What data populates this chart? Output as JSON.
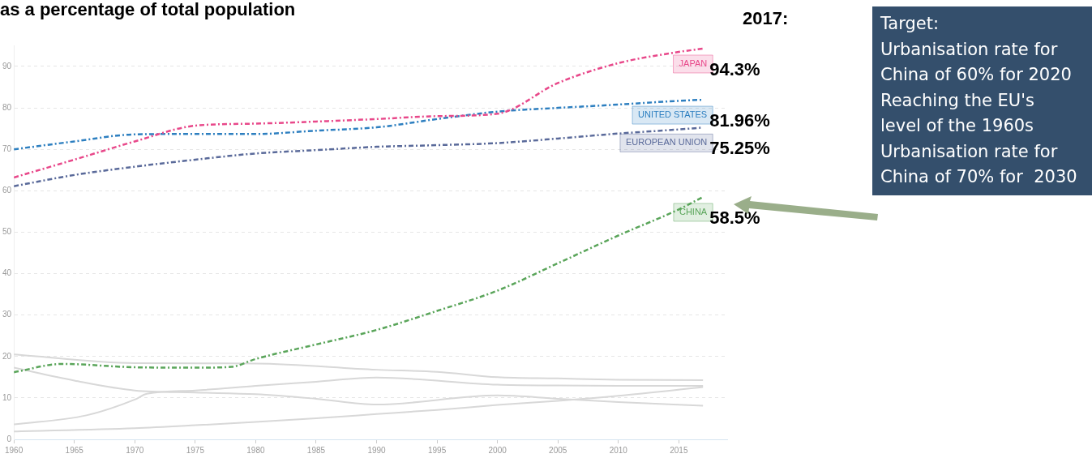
{
  "chart_data": {
    "type": "line",
    "title": "as a percentage of total population",
    "x": [
      1960,
      1965,
      1970,
      1975,
      1980,
      1985,
      1990,
      1995,
      2000,
      2005,
      2010,
      2015,
      2017
    ],
    "series": [
      {
        "name": "JAPAN",
        "color": "#e8488a",
        "line_style": "dashed",
        "values": [
          63.2,
          67.5,
          71.9,
          75.7,
          76.2,
          76.7,
          77.3,
          78.0,
          78.6,
          86.0,
          90.8,
          93.5,
          94.3
        ],
        "value_labels": [
          null,
          null,
          null,
          null,
          null,
          null,
          null,
          null,
          null,
          null,
          null,
          null,
          "94.3%"
        ]
      },
      {
        "name": "UNITED STATES",
        "color": "#2d7fc0",
        "line_style": "dashed",
        "values": [
          70.0,
          71.9,
          73.6,
          73.7,
          73.7,
          74.5,
          75.3,
          77.3,
          79.1,
          80.0,
          80.8,
          81.7,
          81.96
        ],
        "value_labels": [
          null,
          null,
          null,
          null,
          null,
          null,
          null,
          null,
          null,
          null,
          null,
          null,
          "81.96%"
        ]
      },
      {
        "name": "EUROPEAN UNION",
        "color": "#5a6a9a",
        "line_style": "dashed",
        "values": [
          61.1,
          63.8,
          65.8,
          67.5,
          69.0,
          69.8,
          70.6,
          71.0,
          71.5,
          72.6,
          73.8,
          74.8,
          75.25
        ],
        "value_labels": [
          null,
          null,
          null,
          null,
          null,
          null,
          null,
          null,
          null,
          null,
          null,
          null,
          "75.25%"
        ]
      },
      {
        "name": "CHINA",
        "color": "#5aa55a",
        "line_style": "dashed",
        "x": [
          1960,
          1964,
          1970,
          1975,
          1978,
          1980,
          1985,
          1990,
          1995,
          2000,
          2005,
          2010,
          2015,
          2017
        ],
        "values": [
          16.2,
          18.2,
          17.4,
          17.3,
          17.5,
          19.4,
          22.9,
          26.4,
          31.0,
          35.9,
          42.5,
          49.2,
          55.5,
          58.5
        ],
        "value_labels": [
          null,
          null,
          null,
          null,
          null,
          null,
          null,
          null,
          null,
          null,
          null,
          null,
          null,
          "58.5%"
        ]
      },
      {
        "color": "#d8d8d8",
        "line_style": "solid",
        "x": [
          1960,
          1970,
          1980,
          1990,
          1995,
          2000,
          2005,
          2010,
          2017
        ],
        "values": [
          20.5,
          18.4,
          18.3,
          16.8,
          16.3,
          15.0,
          14.7,
          14.4,
          14.3
        ]
      },
      {
        "color": "#d8d8d8",
        "line_style": "solid",
        "x": [
          1960,
          1965,
          1970,
          1975,
          1980,
          1985,
          1990,
          2000,
          2005,
          2010,
          2017
        ],
        "values": [
          17.3,
          14.2,
          11.8,
          11.3,
          10.9,
          9.8,
          8.4,
          10.6,
          9.8,
          9.0,
          8.1
        ]
      },
      {
        "color": "#d8d8d8",
        "line_style": "solid",
        "x": [
          1960,
          1966,
          1970,
          1971,
          1975,
          1980,
          1985,
          1990,
          2000,
          2005,
          2010,
          2017
        ],
        "values": [
          3.6,
          5.8,
          9.6,
          11.0,
          11.8,
          12.9,
          13.9,
          14.9,
          13.2,
          13.0,
          12.9,
          12.9
        ]
      },
      {
        "color": "#d8d8d8",
        "line_style": "solid",
        "x": [
          1960,
          1970,
          1975,
          1980,
          1985,
          1990,
          1995,
          2000,
          2005,
          2010,
          2017
        ],
        "values": [
          1.9,
          2.7,
          3.4,
          4.2,
          5.1,
          6.1,
          7.1,
          8.3,
          9.3,
          10.5,
          12.6
        ]
      }
    ],
    "xlim": [
      1960,
      2019
    ],
    "xticks": [
      1960,
      1965,
      1970,
      1975,
      1980,
      1985,
      1990,
      1995,
      2000,
      2005,
      2010,
      2015
    ],
    "ylim": [
      0,
      95
    ],
    "yticks": [
      0,
      10,
      20,
      30,
      40,
      50,
      60,
      70,
      80,
      90
    ],
    "grid": "y",
    "legend": false,
    "marker": "none",
    "annotations": [
      "2017:",
      "Target:\nUrbanisation rate for\nChina of 60% for 2020\nReaching the EU's\nlevel of the 1960s\nUrbanisation rate for\nChina of 70% for  2030"
    ]
  }
}
